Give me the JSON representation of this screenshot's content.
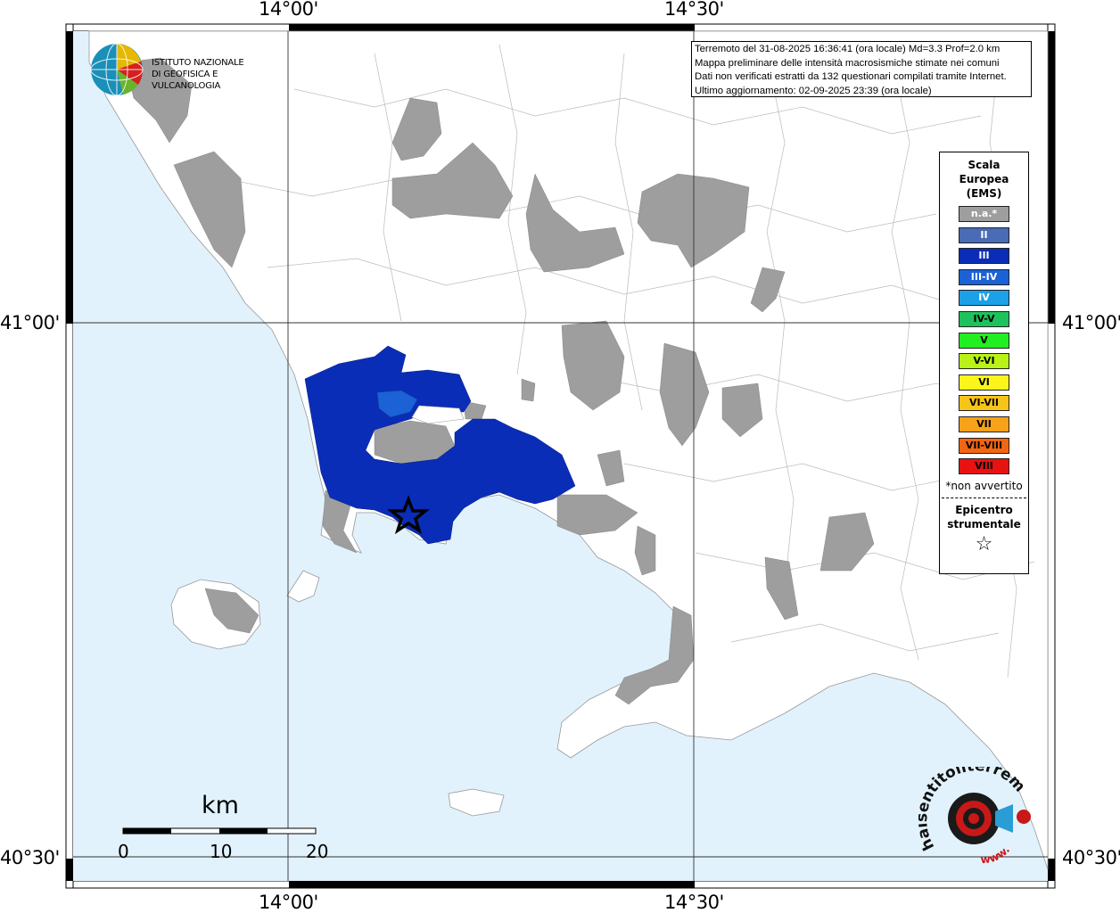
{
  "map": {
    "lon_labels": [
      "14°00'",
      "14°30'"
    ],
    "lat_labels": [
      "41°00'",
      "40°30'"
    ]
  },
  "info": {
    "line1": "Terremoto del 31-08-2025 16:36:41 (ora locale) Md=3.3 Prof=2.0 km",
    "line2": "Mappa preliminare delle intensità macrosismiche stimate nei comuni",
    "line3": "Dati non verificati estratti da 132 questionari compilati tramite Internet.",
    "line4": "Ultimo aggiornamento: 02-09-2025 23:39 (ora locale)"
  },
  "logo": {
    "line1": "ISTITUTO NAZIONALE",
    "line2": "DI GEOFISICA E VULCANOLOGIA"
  },
  "legend": {
    "title_1": "Scala",
    "title_2": "Europea",
    "title_3": "(EMS)",
    "items": [
      {
        "label": "n.a.*",
        "color": "#9e9e9e",
        "text_color": "#ffffff"
      },
      {
        "label": "II",
        "color": "#4a6bb5",
        "text_color": "#ffffff"
      },
      {
        "label": "III",
        "color": "#0a2db8",
        "text_color": "#ffffff"
      },
      {
        "label": "III-IV",
        "color": "#1a62d6",
        "text_color": "#ffffff"
      },
      {
        "label": "IV",
        "color": "#1ca0e8",
        "text_color": "#ffffff"
      },
      {
        "label": "IV-V",
        "color": "#1ec25c",
        "text_color": "#000000"
      },
      {
        "label": "V",
        "color": "#22ee22",
        "text_color": "#000000"
      },
      {
        "label": "V-VI",
        "color": "#b8f216",
        "text_color": "#000000"
      },
      {
        "label": "VI",
        "color": "#fbf51c",
        "text_color": "#000000"
      },
      {
        "label": "VI-VII",
        "color": "#f8c418",
        "text_color": "#000000"
      },
      {
        "label": "VII",
        "color": "#f7a219",
        "text_color": "#000000"
      },
      {
        "label": "VII-VIII",
        "color": "#f26612",
        "text_color": "#000000"
      },
      {
        "label": "VIII",
        "color": "#e81212",
        "text_color": "#000000"
      }
    ],
    "note": "*non avvertito",
    "epicenter_1": "Epicentro",
    "epicenter_2": "strumentale",
    "epicenter_symbol": "☆"
  },
  "scale_bar": {
    "unit": "km",
    "ticks": [
      "0",
      "10",
      "20"
    ]
  },
  "colors": {
    "sea": "#e1f2fc",
    "land": "#ffffff",
    "not_available": "#9e9e9e",
    "intensity_III": "#0a2db8",
    "intensity_III_IV": "#1a62d6"
  },
  "badge": {
    "text": "haisentitoilterremoto.it",
    "text_2": "www."
  }
}
